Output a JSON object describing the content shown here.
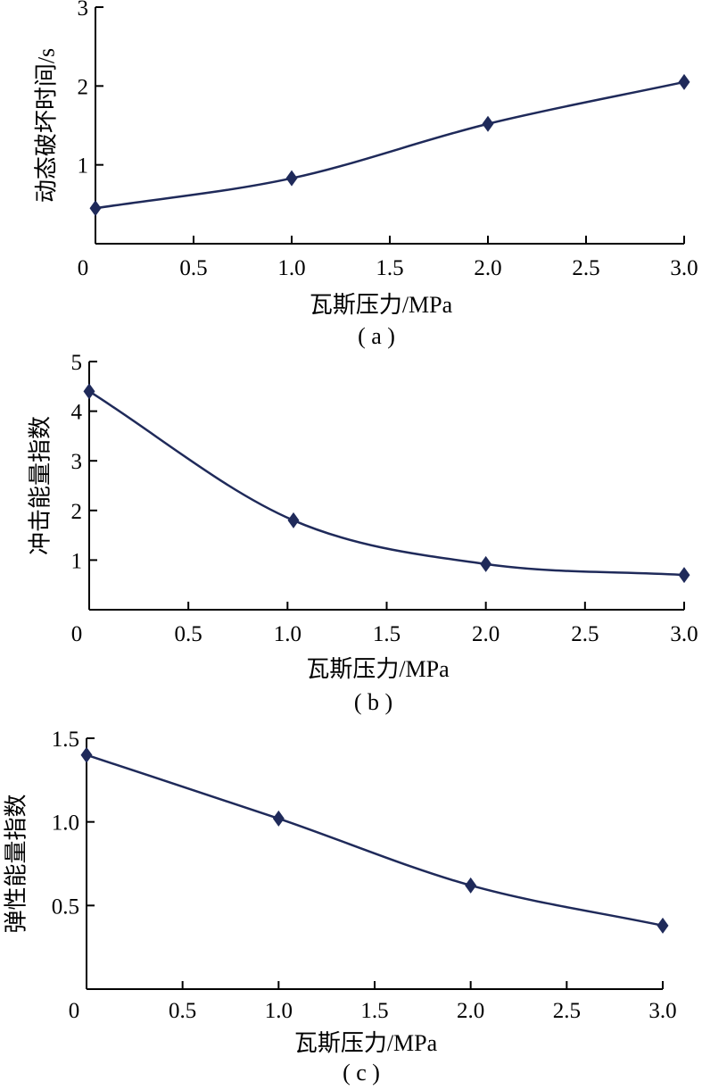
{
  "colors": {
    "series": "#1f2a5a",
    "axis": "#000000"
  },
  "chart_data": [
    {
      "type": "line",
      "panel_label": "( a )",
      "x": [
        0,
        1.0,
        2.0,
        3.0
      ],
      "values": [
        0.45,
        0.83,
        1.52,
        2.05
      ],
      "xlabel": "瓦斯压力/MPa",
      "ylabel": "动态破坏时间/s",
      "xlim": [
        0,
        3.0
      ],
      "ylim": [
        0,
        3
      ],
      "xticks": [
        0,
        0.5,
        1.0,
        1.5,
        2.0,
        2.5,
        3.0
      ],
      "xtick_labels": [
        "0",
        "0.5",
        "1.0",
        "1.5",
        "2.0",
        "2.5",
        "3.0"
      ],
      "yticks": [
        1,
        2,
        3
      ],
      "ytick_labels": [
        "1",
        "2",
        "3"
      ],
      "marker": "diamond",
      "grid": false
    },
    {
      "type": "line",
      "panel_label": "( b )",
      "x": [
        0,
        1.03,
        2.0,
        3.0
      ],
      "values": [
        4.4,
        1.8,
        0.92,
        0.7
      ],
      "xlabel": "瓦斯压力/MPa",
      "ylabel": "冲击能量指数",
      "xlim": [
        0,
        3.0
      ],
      "ylim": [
        0,
        5
      ],
      "xticks": [
        0,
        0.5,
        1.0,
        1.5,
        2.0,
        2.5,
        3.0
      ],
      "xtick_labels": [
        "0",
        "0.5",
        "1.0",
        "1.5",
        "2.0",
        "2.5",
        "3.0"
      ],
      "yticks": [
        1,
        2,
        3,
        4,
        5
      ],
      "ytick_labels": [
        "1",
        "2",
        "3",
        "4",
        "5"
      ],
      "marker": "diamond",
      "grid": false
    },
    {
      "type": "line",
      "panel_label": "( c )",
      "x": [
        0,
        1.0,
        2.0,
        3.0
      ],
      "values": [
        1.4,
        1.02,
        0.62,
        0.38
      ],
      "xlabel": "瓦斯压力/MPa",
      "ylabel": "弹性能量指数",
      "xlim": [
        0,
        3.0
      ],
      "ylim": [
        0,
        1.5
      ],
      "xticks": [
        0,
        0.5,
        1.0,
        1.5,
        2.0,
        2.5,
        3.0
      ],
      "xtick_labels": [
        "0",
        "0.5",
        "1.0",
        "1.5",
        "2.0",
        "2.5",
        "3.0"
      ],
      "yticks": [
        0.5,
        1.0,
        1.5
      ],
      "ytick_labels": [
        "0.5",
        "1.0",
        "1.5"
      ],
      "marker": "diamond",
      "grid": false
    }
  ]
}
